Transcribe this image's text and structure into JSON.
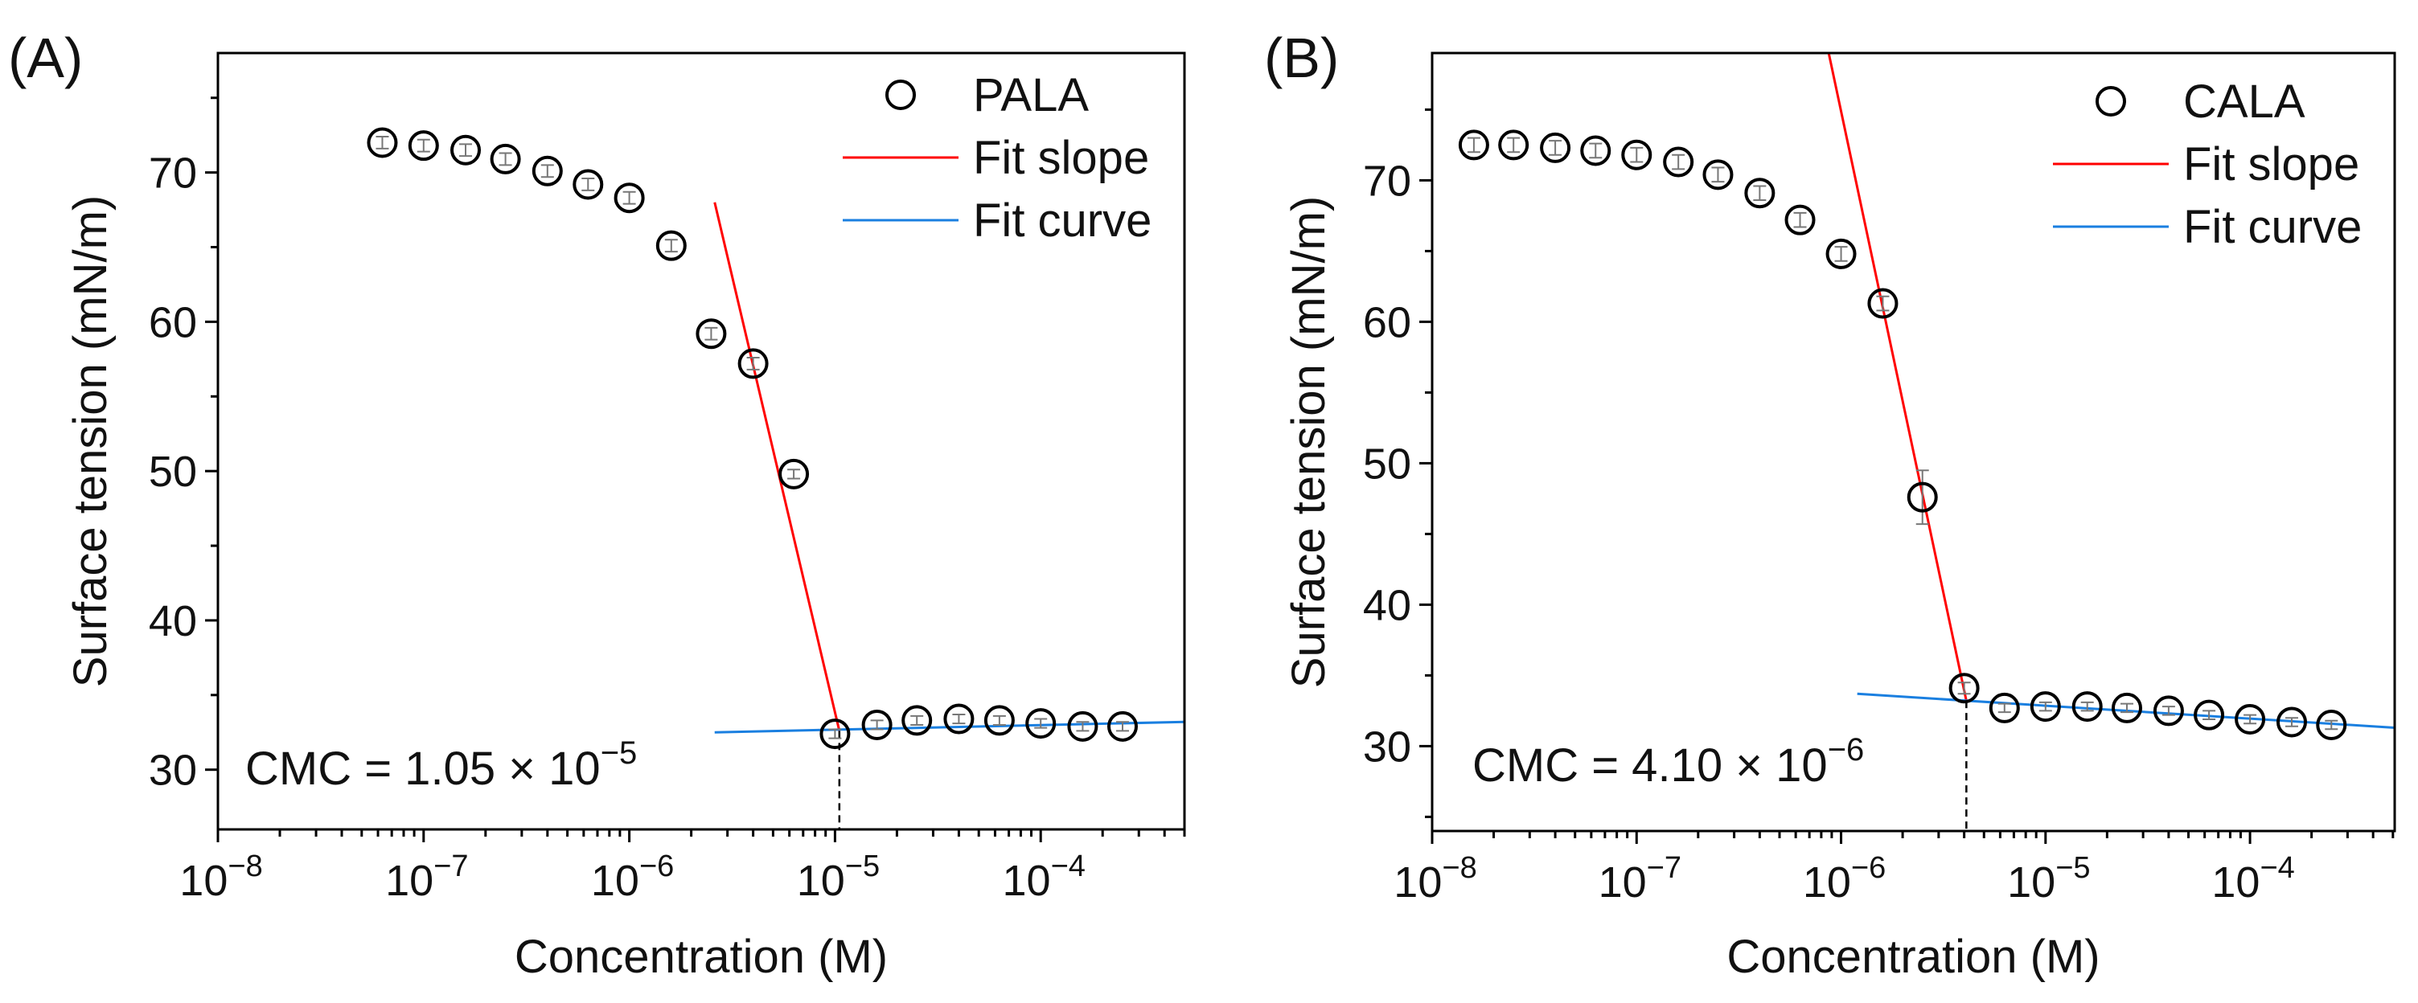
{
  "chart_data": [
    {
      "type": "scatter",
      "panel_label": "(A)",
      "xlabel": "Concentration (M)",
      "ylabel": "Surface tension (mN/m)",
      "xscale": "log",
      "xlim": [
        1e-08,
        0.0005
      ],
      "ylim": [
        26,
        78
      ],
      "xticks": [
        {
          "v": 1e-08,
          "base": "10",
          "exp": "−8"
        },
        {
          "v": 1e-07,
          "base": "10",
          "exp": "−7"
        },
        {
          "v": 1e-06,
          "base": "10",
          "exp": "−6"
        },
        {
          "v": 1e-05,
          "base": "10",
          "exp": "−5"
        },
        {
          "v": 0.0001,
          "base": "10",
          "exp": "−4"
        }
      ],
      "yticks": [
        30,
        40,
        50,
        60,
        70
      ],
      "legend_position": "top-right",
      "series": [
        {
          "name": "PALA",
          "kind": "points",
          "color": "#000000",
          "x": [
            6.3e-08,
            1e-07,
            1.6e-07,
            2.5e-07,
            4e-07,
            6.3e-07,
            1e-06,
            1.6e-06,
            2.5e-06,
            4e-06,
            6.3e-06,
            1e-05,
            1.6e-05,
            2.5e-05,
            4e-05,
            6.3e-05,
            0.0001,
            0.00016,
            0.00025
          ],
          "y": [
            72.0,
            71.8,
            71.5,
            70.9,
            70.1,
            69.2,
            68.3,
            65.1,
            59.2,
            57.2,
            49.8,
            32.4,
            33.0,
            33.3,
            33.4,
            33.3,
            33.1,
            32.9,
            32.9
          ],
          "err": [
            0.4,
            0.4,
            0.4,
            0.4,
            0.4,
            0.4,
            0.4,
            0.4,
            0.4,
            0.4,
            0.3,
            0.3,
            0.3,
            0.3,
            0.3,
            0.3,
            0.3,
            0.3,
            0.3
          ]
        },
        {
          "name": "Fit slope",
          "kind": "line",
          "color": "#ff0000",
          "x": [
            2.6e-06,
            1.05e-05
          ],
          "y": [
            68.0,
            32.6
          ]
        },
        {
          "name": "Fit curve",
          "kind": "line",
          "color": "#1a7fe0",
          "x": [
            2.6e-06,
            0.0005
          ],
          "y": [
            32.5,
            33.2
          ]
        }
      ],
      "cmc_line": {
        "x": 1.05e-05,
        "y": 32.6
      },
      "annotation": {
        "text": "CMC = 1.05 × 10",
        "exp": "−5"
      }
    },
    {
      "type": "scatter",
      "panel_label": "(B)",
      "xlabel": "Concentration (M)",
      "ylabel": "Surface tension (mN/m)",
      "xscale": "log",
      "xlim": [
        1e-08,
        0.00051
      ],
      "ylim": [
        24,
        79
      ],
      "xticks": [
        {
          "v": 1e-08,
          "base": "10",
          "exp": "−8"
        },
        {
          "v": 1e-07,
          "base": "10",
          "exp": "−7"
        },
        {
          "v": 1e-06,
          "base": "10",
          "exp": "−6"
        },
        {
          "v": 1e-05,
          "base": "10",
          "exp": "−5"
        },
        {
          "v": 0.0001,
          "base": "10",
          "exp": "−4"
        }
      ],
      "yticks": [
        30,
        40,
        50,
        60,
        70
      ],
      "legend_position": "top-right",
      "series": [
        {
          "name": "CALA",
          "kind": "points",
          "color": "#000000",
          "x": [
            1.6e-08,
            2.5e-08,
            4e-08,
            6.3e-08,
            1e-07,
            1.6e-07,
            2.5e-07,
            4e-07,
            6.3e-07,
            1e-06,
            1.6e-06,
            2.5e-06,
            4e-06,
            6.3e-06,
            1e-05,
            1.6e-05,
            2.5e-05,
            4e-05,
            6.3e-05,
            0.0001,
            0.00016,
            0.00025
          ],
          "y": [
            72.5,
            72.5,
            72.3,
            72.1,
            71.8,
            71.3,
            70.4,
            69.1,
            67.2,
            64.8,
            61.3,
            47.6,
            34.1,
            32.7,
            32.8,
            32.8,
            32.7,
            32.5,
            32.2,
            31.9,
            31.7,
            31.5
          ],
          "err": [
            0.5,
            0.5,
            0.5,
            0.5,
            0.5,
            0.5,
            0.5,
            0.5,
            0.5,
            0.5,
            0.5,
            1.9,
            0.4,
            0.3,
            0.3,
            0.3,
            0.3,
            0.3,
            0.3,
            0.3,
            0.3,
            0.3
          ]
        },
        {
          "name": "Fit slope",
          "kind": "line",
          "color": "#ff0000",
          "x": [
            8.7e-07,
            4.1e-06
          ],
          "y": [
            79.0,
            33.2
          ]
        },
        {
          "name": "Fit curve",
          "kind": "line",
          "color": "#1a7fe0",
          "x": [
            1.2e-06,
            0.00051
          ],
          "y": [
            33.7,
            31.3
          ]
        }
      ],
      "cmc_line": {
        "x": 4.1e-06,
        "y": 33.2
      },
      "annotation": {
        "text": "CMC = 4.10 × 10",
        "exp": "−6"
      }
    }
  ]
}
